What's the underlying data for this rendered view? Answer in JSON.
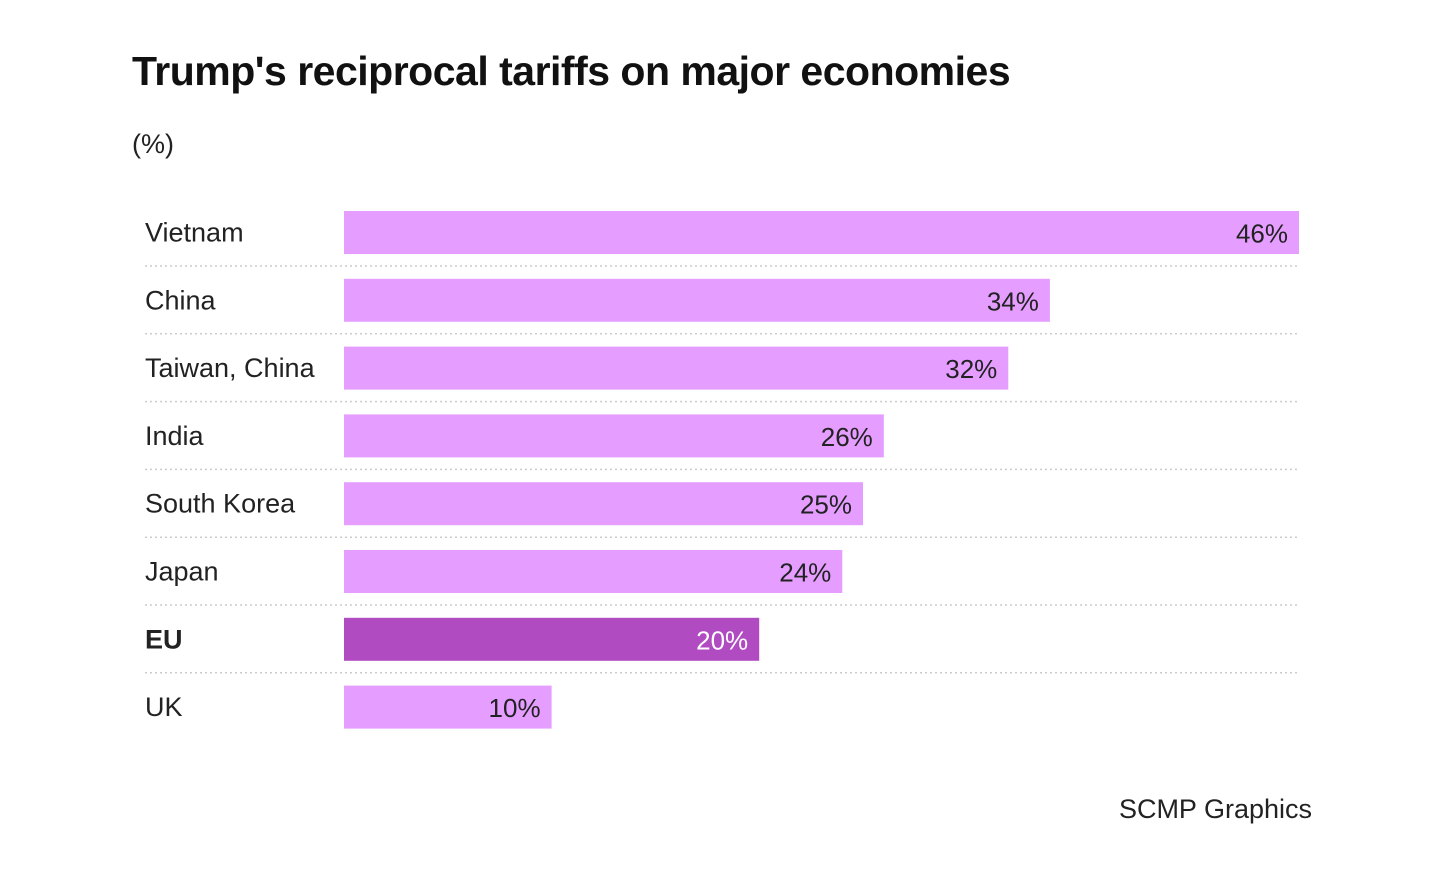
{
  "title": "Trump's reciprocal tariffs on major economies",
  "subtitle": "(%)",
  "source": "SCMP Graphics",
  "colors": {
    "bar": "#e59eff",
    "highlight_bar": "#b04bc2",
    "label_text": "#222222",
    "highlight_label_text": "#ffffff",
    "gridline": "#cccccc"
  },
  "chart_data": {
    "type": "bar",
    "orientation": "horizontal",
    "categories": [
      "Vietnam",
      "China",
      "Taiwan, China",
      "India",
      "South Korea",
      "Japan",
      "EU",
      "UK"
    ],
    "values": [
      46,
      34,
      32,
      26,
      25,
      24,
      20,
      10
    ],
    "value_labels": [
      "46%",
      "34%",
      "32%",
      "26%",
      "25%",
      "24%",
      "20%",
      "10%"
    ],
    "highlight": "EU",
    "title": "Trump's reciprocal tariffs on major economies",
    "ylabel": "(%)",
    "xlim": [
      0,
      46
    ],
    "grid": "dotted row separators"
  }
}
